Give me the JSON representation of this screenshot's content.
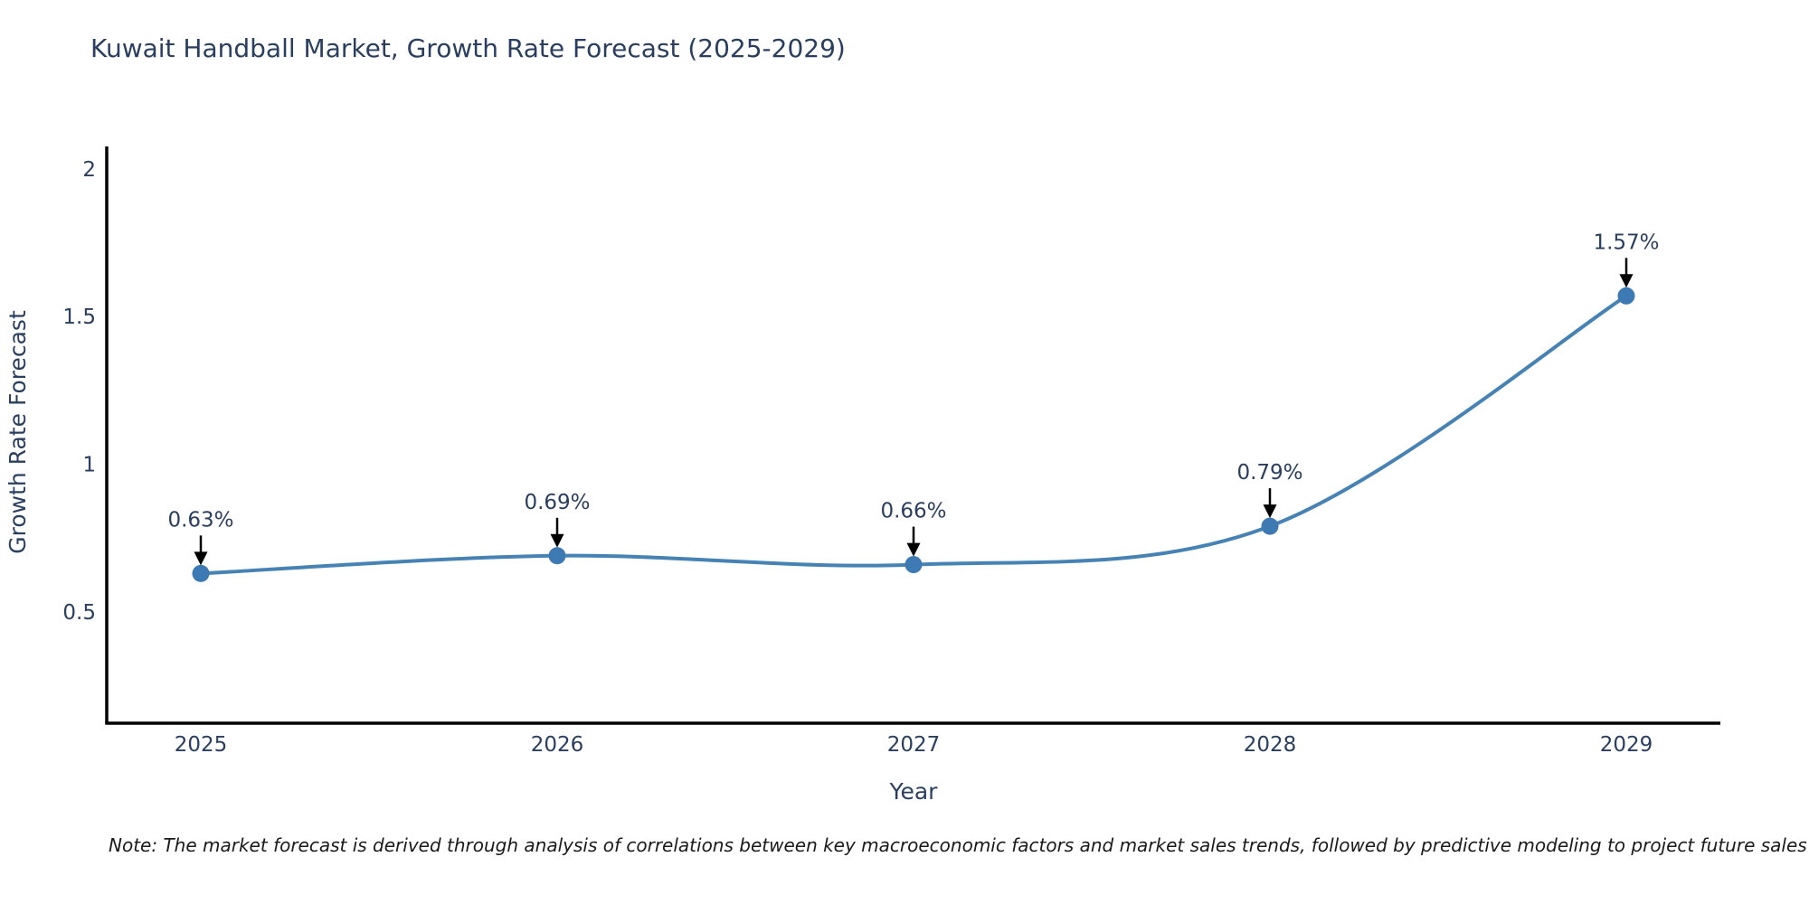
{
  "title": "Kuwait Handball Market, Growth Rate Forecast (2025-2029)",
  "note": "Note: The market forecast is derived through analysis of correlations between key macroeconomic factors and market sales trends, followed by predictive modeling to project future sales",
  "colors": {
    "title_text": "#2a3f5f",
    "axis_text": "#2a3f5f",
    "axis_line": "#000000",
    "line": "#4682b4",
    "marker": "#3d79b2",
    "annotation_text": "#2a3f5f",
    "arrow": "#000000",
    "note_text": "#1a1a1a",
    "background": "#ffffff"
  },
  "chart_data": {
    "type": "line",
    "title": "Kuwait Handball Market, Growth Rate Forecast (2025-2029)",
    "xlabel": "Year",
    "ylabel": "Growth Rate Forecast",
    "x": [
      2025,
      2026,
      2027,
      2028,
      2029
    ],
    "series": [
      {
        "name": "Growth Rate Forecast",
        "values": [
          0.63,
          0.69,
          0.66,
          0.79,
          1.57
        ]
      }
    ],
    "point_labels": [
      "0.63%",
      "0.69%",
      "0.66%",
      "0.79%",
      "1.57%"
    ],
    "yticks": [
      0.5,
      1,
      1.5,
      2
    ],
    "ytick_labels": [
      "0.5",
      "1",
      "1.5",
      "2"
    ],
    "ylim": [
      0.123,
      2.076
    ],
    "grid": false,
    "legend": "none",
    "line_shape": "spline",
    "annotations": "value labels with downward arrows above each point"
  }
}
